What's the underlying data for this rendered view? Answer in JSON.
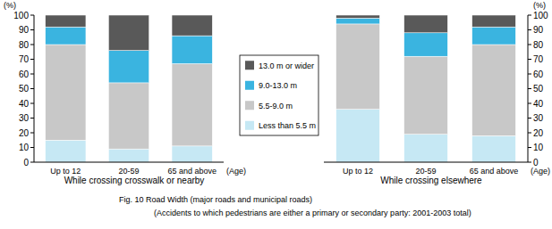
{
  "chart_data": [
    {
      "type": "bar",
      "stacked": true,
      "grid": false,
      "legend": "right",
      "title": "While crossing crosswalk or nearby",
      "y_label": "(%)",
      "x_label": "(Age)",
      "categories": [
        "Up to 12",
        "20-59",
        "65 and above"
      ],
      "ylim": [
        0,
        100
      ],
      "yticks": [
        0,
        10,
        20,
        30,
        40,
        50,
        60,
        70,
        80,
        90,
        100
      ],
      "series": [
        {
          "name": "Less than 5.5 m",
          "color": "#c6e8f4",
          "values": [
            15,
            9,
            11
          ]
        },
        {
          "name": "5.5-9.0 m",
          "color": "#c8c8c8",
          "values": [
            65,
            45,
            56
          ]
        },
        {
          "name": "9.0-13.0 m",
          "color": "#3ab4e0",
          "values": [
            12,
            22,
            19
          ]
        },
        {
          "name": "13.0 m or wider",
          "color": "#595959",
          "values": [
            8,
            24,
            14
          ]
        }
      ]
    },
    {
      "type": "bar",
      "stacked": true,
      "grid": false,
      "title": "While crossing elsewhere",
      "y_label": "(%)",
      "x_label": "(Age)",
      "categories": [
        "Up to 12",
        "20-59",
        "65 and above"
      ],
      "ylim": [
        0,
        100
      ],
      "yticks": [
        0,
        10,
        20,
        30,
        40,
        50,
        60,
        70,
        80,
        90,
        100
      ],
      "series": [
        {
          "color": "#c6e8f4",
          "values": [
            36,
            19,
            18
          ]
        },
        {
          "color": "#c8c8c8",
          "values": [
            58,
            53,
            62
          ]
        },
        {
          "color": "#3ab4e0",
          "values": [
            4,
            16,
            12
          ]
        },
        {
          "color": "#595959",
          "values": [
            2,
            12,
            8
          ]
        }
      ]
    }
  ],
  "caption": [
    "Fig. 10  Road Width (major roads and municipal roads)",
    "(Accidents to which pedestrians are either a primary or secondary party: 2001-2003 total)"
  ]
}
